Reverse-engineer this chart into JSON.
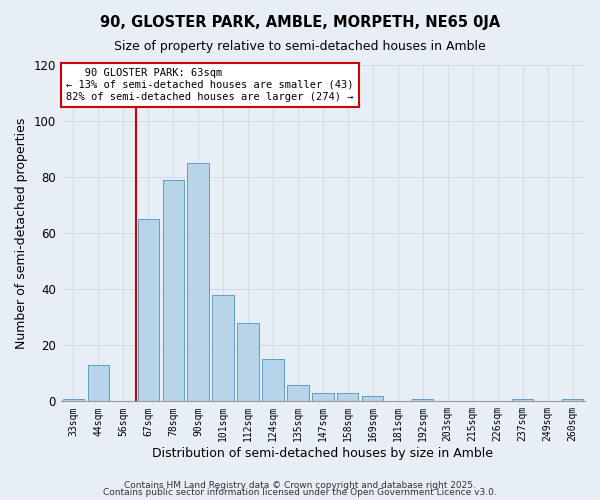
{
  "title": "90, GLOSTER PARK, AMBLE, MORPETH, NE65 0JA",
  "subtitle": "Size of property relative to semi-detached houses in Amble",
  "xlabel": "Distribution of semi-detached houses by size in Amble",
  "ylabel": "Number of semi-detached properties",
  "bin_labels": [
    "33sqm",
    "44sqm",
    "56sqm",
    "67sqm",
    "78sqm",
    "90sqm",
    "101sqm",
    "112sqm",
    "124sqm",
    "135sqm",
    "147sqm",
    "158sqm",
    "169sqm",
    "181sqm",
    "192sqm",
    "203sqm",
    "215sqm",
    "226sqm",
    "237sqm",
    "249sqm",
    "260sqm"
  ],
  "bar_values": [
    1,
    13,
    0,
    65,
    79,
    85,
    38,
    28,
    15,
    6,
    3,
    3,
    2,
    0,
    1,
    0,
    0,
    0,
    1,
    0,
    1
  ],
  "bar_color": "#b8d4e8",
  "bar_edge_color": "#5a9ec9",
  "ylim": [
    0,
    120
  ],
  "yticks": [
    0,
    20,
    40,
    60,
    80,
    100,
    120
  ],
  "property_label": "90 GLOSTER PARK: 63sqm",
  "pct_smaller": 13,
  "n_smaller": 43,
  "pct_larger": 82,
  "n_larger": 274,
  "vline_color": "#cc0000",
  "annotation_box_color": "#cc0000",
  "grid_color": "#d0dce8",
  "bg_color": "#e8eef5",
  "footer1": "Contains HM Land Registry data © Crown copyright and database right 2025.",
  "footer2": "Contains public sector information licensed under the Open Government Licence v3.0."
}
